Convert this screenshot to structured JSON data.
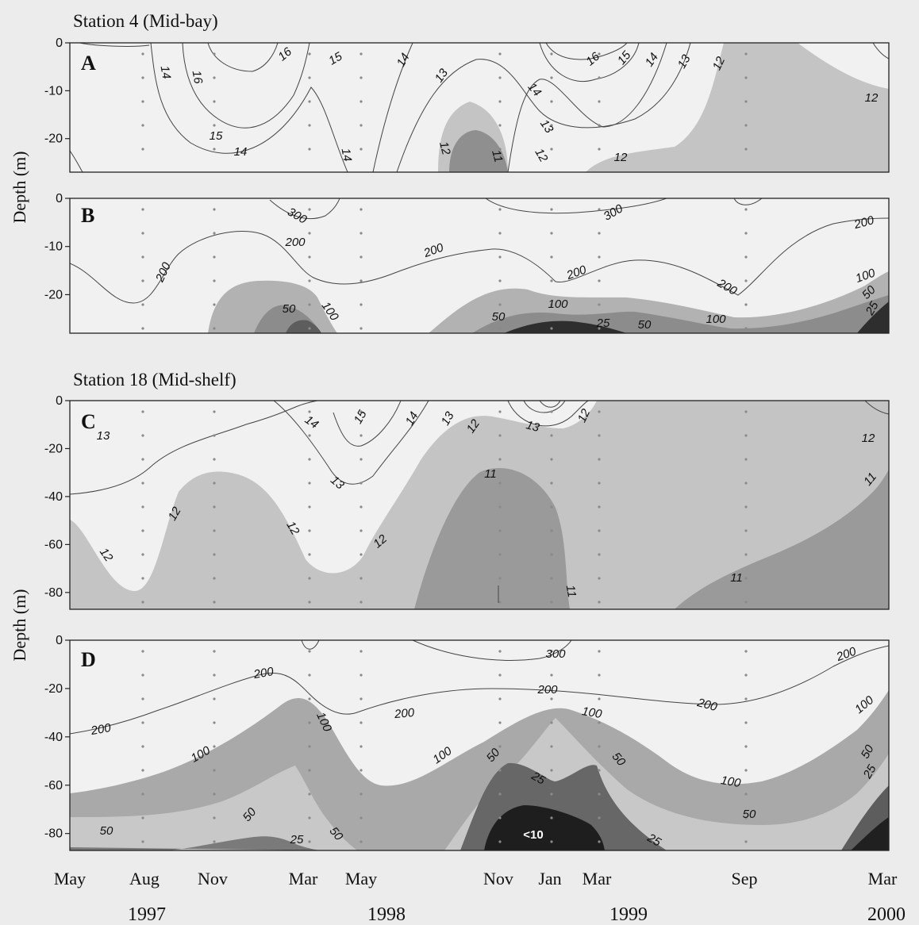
{
  "figure": {
    "station1_title": "Station 4 (Mid-bay)",
    "station2_title": "Station 18 (Mid-shelf)",
    "ylabel": "Depth (m)",
    "x_axis_months": [
      "May",
      "Aug",
      "Nov",
      "Mar",
      "May",
      "Nov",
      "Jan",
      "Mar",
      "Sep",
      "Mar"
    ],
    "x_axis_years": [
      "1997",
      "1998",
      "1999",
      "2000"
    ]
  },
  "chart_data": [
    {
      "type": "contour",
      "panel": "A",
      "station": "Station 4 (Mid-bay)",
      "ylabel": "Depth (m)",
      "ylim": [
        -27,
        0
      ],
      "yticks": [
        0,
        -10,
        -20
      ],
      "contour_levels": [
        "16",
        "15",
        "14",
        "13",
        "12",
        "11"
      ],
      "shaded_regions": [
        "< 12",
        "< 11"
      ]
    },
    {
      "type": "contour",
      "panel": "B",
      "station": "Station 4 (Mid-bay)",
      "ylabel": "Depth (m)",
      "ylim": [
        -28,
        0
      ],
      "yticks": [
        0,
        -10,
        -20
      ],
      "contour_levels": [
        "300",
        "200",
        "100",
        "50",
        "25"
      ],
      "shaded_regions": [
        "< 100",
        "< 50",
        "< 25"
      ]
    },
    {
      "type": "contour",
      "panel": "C",
      "station": "Station 18 (Mid-shelf)",
      "ylabel": "Depth (m)",
      "ylim": [
        -87,
        0
      ],
      "yticks": [
        0,
        -20,
        -40,
        -60,
        -80
      ],
      "contour_levels": [
        "15",
        "14",
        "13",
        "12",
        "11"
      ],
      "shaded_regions": [
        "< 12",
        "< 11"
      ]
    },
    {
      "type": "contour",
      "panel": "D",
      "station": "Station 18 (Mid-shelf)",
      "ylabel": "Depth (m)",
      "ylim": [
        -87,
        0
      ],
      "yticks": [
        0,
        -20,
        -40,
        -60,
        -80
      ],
      "contour_levels": [
        "300",
        "200",
        "100",
        "50",
        "25",
        "<10"
      ],
      "shaded_regions": [
        "< 100",
        "< 50",
        "< 25",
        "<10"
      ]
    }
  ]
}
